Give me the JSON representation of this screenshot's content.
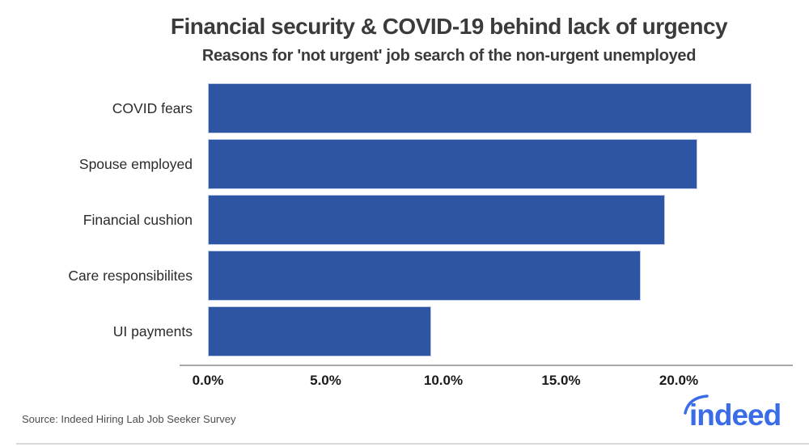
{
  "header": {
    "title": "Financial security & COVID-19 behind lack of urgency",
    "subtitle": "Reasons for 'not urgent' job search of the non-urgent unemployed"
  },
  "chart_data": {
    "type": "bar",
    "orientation": "horizontal",
    "title": "Financial security & COVID-19 behind lack of urgency",
    "subtitle": "Reasons for 'not urgent' job search of the non-urgent unemployed",
    "categories": [
      "COVID fears",
      "Spouse employed",
      "Financial cushion",
      "Care responsibilites",
      "UI payments"
    ],
    "values": [
      23.1,
      20.8,
      19.4,
      18.4,
      9.5
    ],
    "unit": "%",
    "x_ticks": [
      "0.0%",
      "5.0%",
      "10.0%",
      "15.0%",
      "20.0%"
    ],
    "x_tick_values": [
      0,
      5,
      10,
      15,
      20
    ],
    "xlim": [
      0,
      24.9
    ],
    "grid": false,
    "legend": null,
    "bar_color": "#2e55a4",
    "bar_edge_color": "#bcc9e6",
    "axis_color": "#a8a8a8"
  },
  "footer": {
    "source": "Source: Indeed Hiring Lab Job Seeker Survey",
    "logo_text": "indeed",
    "logo_color": "#3a6ce8"
  }
}
